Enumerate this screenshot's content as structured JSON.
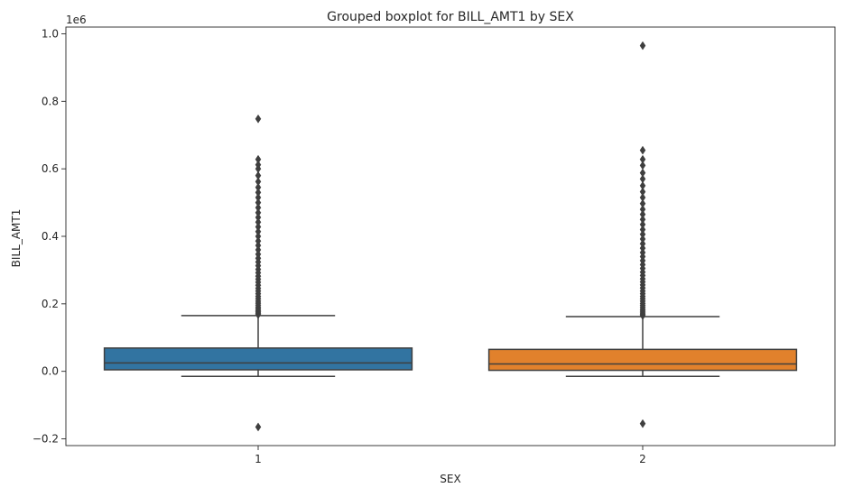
{
  "chart_data": {
    "type": "boxplot",
    "title": "Grouped boxplot for BILL_AMT1 by SEX",
    "xlabel": "SEX",
    "ylabel": "BILL_AMT1",
    "y_offset_text": "1e6",
    "categories": [
      "1",
      "2"
    ],
    "ylim": [
      -0.22,
      1.02
    ],
    "y_ticks": [
      -0.2,
      0.0,
      0.2,
      0.4,
      0.6,
      0.8,
      1.0
    ],
    "y_tick_labels": [
      "−0.2",
      "0.0",
      "0.2",
      "0.4",
      "0.6",
      "0.8",
      "1.0"
    ],
    "grid": false,
    "legend": "none",
    "boxes": [
      {
        "category": "1",
        "color": "#3274a1",
        "q1": 0.0045,
        "median": 0.025,
        "q3": 0.069,
        "whisker_low": -0.015,
        "whisker_high": 0.165,
        "outliers": [
          -0.165,
          0.168,
          0.172,
          0.176,
          0.18,
          0.185,
          0.19,
          0.196,
          0.202,
          0.208,
          0.215,
          0.222,
          0.23,
          0.238,
          0.246,
          0.255,
          0.264,
          0.273,
          0.282,
          0.292,
          0.302,
          0.313,
          0.324,
          0.335,
          0.347,
          0.36,
          0.373,
          0.386,
          0.4,
          0.414,
          0.428,
          0.442,
          0.456,
          0.47,
          0.485,
          0.5,
          0.515,
          0.53,
          0.545,
          0.562,
          0.58,
          0.6,
          0.612,
          0.628,
          0.748
        ]
      },
      {
        "category": "2",
        "color": "#e1812c",
        "q1": 0.003,
        "median": 0.022,
        "q3": 0.065,
        "whisker_low": -0.015,
        "whisker_high": 0.162,
        "outliers": [
          -0.155,
          0.165,
          0.169,
          0.173,
          0.178,
          0.183,
          0.189,
          0.195,
          0.201,
          0.208,
          0.215,
          0.222,
          0.23,
          0.238,
          0.247,
          0.256,
          0.265,
          0.274,
          0.284,
          0.294,
          0.305,
          0.316,
          0.328,
          0.34,
          0.352,
          0.365,
          0.378,
          0.392,
          0.406,
          0.42,
          0.435,
          0.45,
          0.465,
          0.48,
          0.497,
          0.515,
          0.532,
          0.55,
          0.57,
          0.588,
          0.61,
          0.628,
          0.655,
          0.965
        ]
      }
    ]
  }
}
